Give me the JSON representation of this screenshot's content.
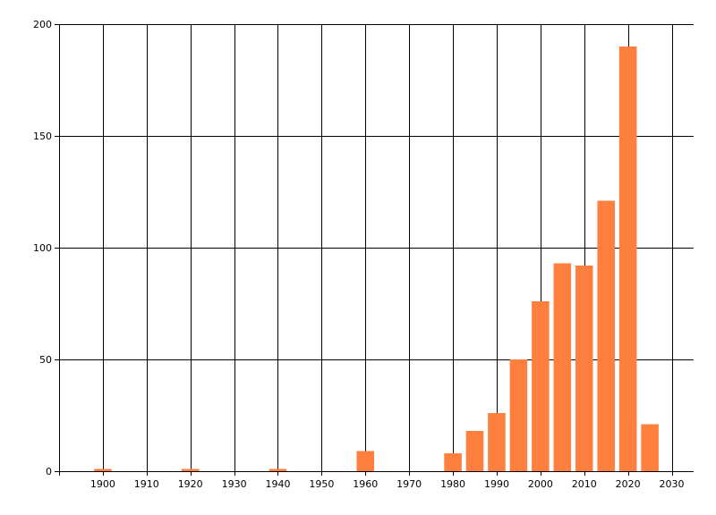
{
  "chart_data": {
    "type": "bar",
    "title": "",
    "xlabel": "",
    "ylabel": "",
    "x": [
      1900,
      1920,
      1940,
      1960,
      1980,
      1985,
      1990,
      1995,
      2000,
      2005,
      2010,
      2015,
      2020,
      2025
    ],
    "values": [
      1,
      1,
      1,
      9,
      8,
      18,
      26,
      50,
      76,
      93,
      92,
      121,
      190,
      21
    ],
    "xlim": [
      1890,
      2035
    ],
    "ylim": [
      0,
      200
    ],
    "x_ticks": [
      1900,
      1910,
      1920,
      1930,
      1940,
      1950,
      1960,
      1970,
      1980,
      1990,
      2000,
      2010,
      2020,
      2030
    ],
    "y_ticks": [
      0,
      50,
      100,
      150,
      200
    ],
    "x_tick_labels": [
      "1900",
      "1910",
      "1920",
      "1930",
      "1940",
      "1950",
      "1960",
      "1970",
      "1980",
      "1990",
      "2000",
      "2010",
      "2020",
      "2030"
    ],
    "y_tick_labels": [
      "0",
      "50",
      "100",
      "150",
      "200"
    ],
    "bar_width": 4,
    "grid": true,
    "legend": "none",
    "colors": {
      "bar": "#ff7f3f",
      "grid": "#000000",
      "axis": "#000000"
    }
  }
}
